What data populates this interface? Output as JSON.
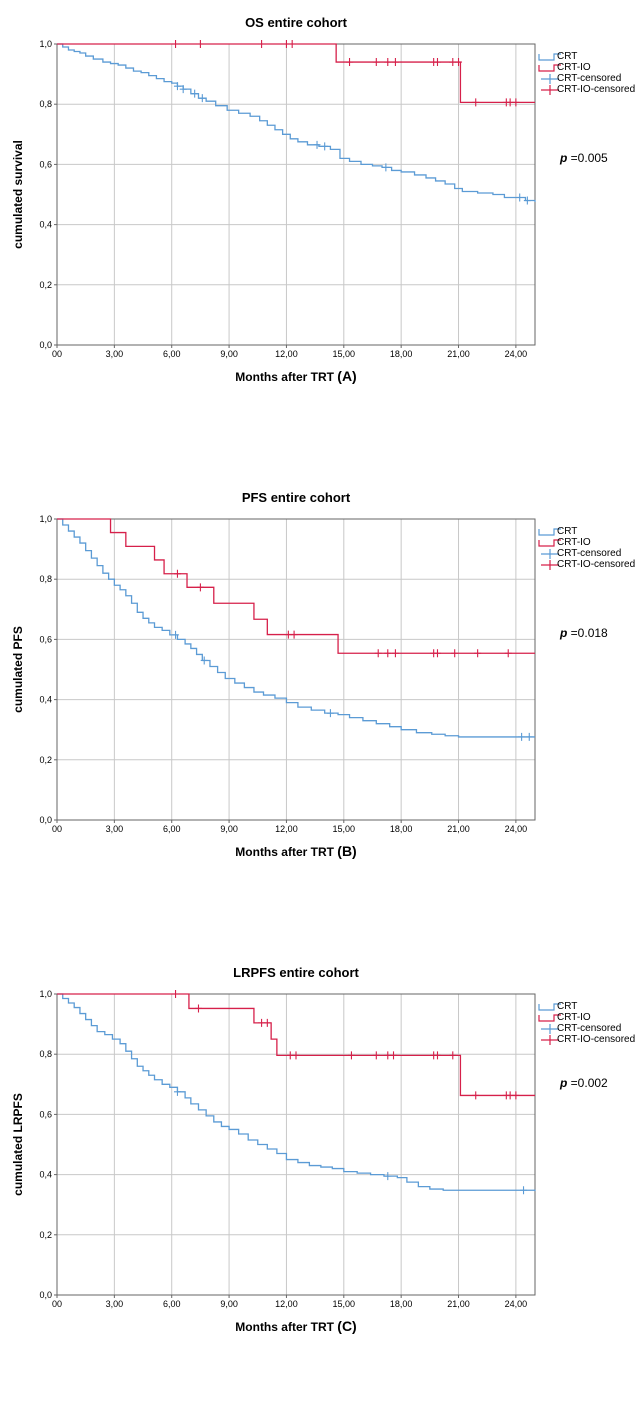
{
  "chart_data": [
    {
      "type": "line",
      "title": "OS entire cohort",
      "xlabel": "Months after TRT",
      "panel_label": "(A)",
      "ylabel": "cumulated survival",
      "p_label": "p",
      "p_value": "=0.005",
      "xlim": [
        0,
        25
      ],
      "ylim": [
        0,
        1
      ],
      "x_ticks": [
        "00",
        "3,00",
        "6,00",
        "9,00",
        "12,00",
        "15,00",
        "18,00",
        "21,00",
        "24,00"
      ],
      "y_ticks": [
        "0,0",
        "0,2",
        "0,4",
        "0,6",
        "0,8",
        "1,0"
      ],
      "legend": [
        "CRT",
        "CRT-IO",
        "CRT-censored",
        "CRT-IO-censored"
      ],
      "colors": {
        "CRT": "#5b9bd5",
        "CRT-IO": "#d6204a"
      },
      "series": [
        {
          "name": "CRT",
          "x": [
            0,
            0.3,
            0.6,
            0.9,
            1.2,
            1.5,
            1.9,
            2.4,
            2.8,
            3.2,
            3.6,
            4.0,
            4.4,
            4.8,
            5.2,
            5.6,
            6.0,
            6.3,
            6.6,
            7.0,
            7.4,
            7.8,
            8.3,
            8.9,
            9.5,
            10.1,
            10.6,
            11.0,
            11.4,
            11.8,
            12.2,
            12.6,
            13.1,
            13.7,
            14.3,
            14.8,
            15.3,
            15.9,
            16.5,
            17.0,
            17.5,
            18.0,
            18.7,
            19.3,
            19.8,
            20.3,
            20.8,
            21.2,
            22.0,
            22.8,
            23.4,
            24.0,
            24.5,
            25.0
          ],
          "y": [
            1.0,
            0.99,
            0.98,
            0.975,
            0.97,
            0.96,
            0.95,
            0.94,
            0.935,
            0.93,
            0.92,
            0.91,
            0.905,
            0.895,
            0.885,
            0.875,
            0.87,
            0.86,
            0.85,
            0.835,
            0.82,
            0.81,
            0.795,
            0.78,
            0.77,
            0.76,
            0.745,
            0.73,
            0.715,
            0.7,
            0.685,
            0.675,
            0.665,
            0.66,
            0.65,
            0.62,
            0.61,
            0.6,
            0.595,
            0.59,
            0.58,
            0.575,
            0.565,
            0.555,
            0.545,
            0.535,
            0.52,
            0.51,
            0.505,
            0.5,
            0.49,
            0.49,
            0.48,
            0.475
          ],
          "censored": [
            6.3,
            6.6,
            7.2,
            7.6,
            13.6,
            14.0,
            17.2,
            24.2,
            24.6
          ]
        },
        {
          "name": "CRT-IO",
          "x": [
            0,
            14.6,
            21.1,
            25.0
          ],
          "y": [
            1.0,
            0.94,
            0.806,
            0.806
          ],
          "censored_x": [
            6.2,
            7.5,
            10.7,
            12.0,
            12.3,
            15.3,
            16.7,
            17.3,
            17.7,
            19.7,
            19.9,
            20.7,
            21.0,
            21.9,
            23.5,
            23.7,
            24.0
          ],
          "censored_y": [
            1.0,
            1.0,
            1.0,
            1.0,
            1.0,
            0.94,
            0.94,
            0.94,
            0.94,
            0.94,
            0.94,
            0.94,
            0.94,
            0.806,
            0.806,
            0.806,
            0.806
          ]
        }
      ]
    },
    {
      "type": "line",
      "title": "PFS entire cohort",
      "xlabel": "Months after TRT",
      "panel_label": "(B)",
      "ylabel": "cumulated PFS",
      "p_label": "p",
      "p_value": "=0.018",
      "xlim": [
        0,
        25
      ],
      "ylim": [
        0,
        1
      ],
      "x_ticks": [
        "00",
        "3,00",
        "6,00",
        "9,00",
        "12,00",
        "15,00",
        "18,00",
        "21,00",
        "24,00"
      ],
      "y_ticks": [
        "0,0",
        "0,2",
        "0,4",
        "0,6",
        "0,8",
        "1,0"
      ],
      "legend": [
        "CRT",
        "CRT-IO",
        "CRT-censored",
        "CRT-IO-censored"
      ],
      "colors": {
        "CRT": "#5b9bd5",
        "CRT-IO": "#d6204a"
      },
      "series": [
        {
          "name": "CRT",
          "x": [
            0,
            0.3,
            0.6,
            0.9,
            1.2,
            1.5,
            1.8,
            2.1,
            2.4,
            2.7,
            3.0,
            3.3,
            3.6,
            3.9,
            4.2,
            4.5,
            4.8,
            5.1,
            5.5,
            5.9,
            6.3,
            6.7,
            7.0,
            7.3,
            7.6,
            8.0,
            8.4,
            8.8,
            9.3,
            9.8,
            10.3,
            10.8,
            11.4,
            12.0,
            12.6,
            13.3,
            14.0,
            14.7,
            15.3,
            16.0,
            16.7,
            17.4,
            18.0,
            18.8,
            19.6,
            20.3,
            21.0,
            24.0,
            25.0
          ],
          "y": [
            1.0,
            0.98,
            0.96,
            0.94,
            0.92,
            0.895,
            0.87,
            0.845,
            0.82,
            0.8,
            0.78,
            0.765,
            0.745,
            0.72,
            0.69,
            0.67,
            0.655,
            0.64,
            0.63,
            0.615,
            0.6,
            0.585,
            0.57,
            0.55,
            0.53,
            0.51,
            0.49,
            0.47,
            0.455,
            0.44,
            0.425,
            0.415,
            0.405,
            0.39,
            0.375,
            0.365,
            0.355,
            0.35,
            0.34,
            0.33,
            0.32,
            0.31,
            0.3,
            0.29,
            0.285,
            0.28,
            0.276,
            0.276,
            0.276
          ],
          "censored": [
            6.2,
            7.7,
            14.3,
            24.3,
            24.7
          ]
        },
        {
          "name": "CRT-IO",
          "x": [
            0,
            2.8,
            3.6,
            5.1,
            5.6,
            6.8,
            8.2,
            10.3,
            11.0,
            14.7,
            25.0
          ],
          "y": [
            1.0,
            0.955,
            0.909,
            0.864,
            0.818,
            0.773,
            0.72,
            0.667,
            0.616,
            0.554,
            0.554
          ],
          "censored_x": [
            6.3,
            7.5,
            12.1,
            12.4,
            16.8,
            17.3,
            17.7,
            19.7,
            19.9,
            20.8,
            22.0,
            23.6
          ],
          "censored_y": [
            0.818,
            0.773,
            0.616,
            0.616,
            0.554,
            0.554,
            0.554,
            0.554,
            0.554,
            0.554,
            0.554,
            0.554
          ]
        }
      ]
    },
    {
      "type": "line",
      "title": "LRPFS entire cohort",
      "xlabel": "Months after TRT",
      "panel_label": "(C)",
      "ylabel": "cumulated LRPFS",
      "p_label": "p",
      "p_value": "=0.002",
      "xlim": [
        0,
        25
      ],
      "ylim": [
        0,
        1
      ],
      "x_ticks": [
        "00",
        "3,00",
        "6,00",
        "9,00",
        "12,00",
        "15,00",
        "18,00",
        "21,00",
        "24,00"
      ],
      "y_ticks": [
        "0,0",
        "0,2",
        "0,4",
        "0,6",
        "0,8",
        "1,0"
      ],
      "legend": [
        "CRT",
        "CRT-IO",
        "CRT-censored",
        "CRT-IO-censored"
      ],
      "colors": {
        "CRT": "#5b9bd5",
        "CRT-IO": "#d6204a"
      },
      "series": [
        {
          "name": "CRT",
          "x": [
            0,
            0.3,
            0.6,
            0.9,
            1.2,
            1.5,
            1.8,
            2.1,
            2.5,
            2.9,
            3.3,
            3.6,
            3.9,
            4.2,
            4.5,
            4.8,
            5.1,
            5.5,
            5.9,
            6.3,
            6.7,
            7.0,
            7.4,
            7.8,
            8.2,
            8.6,
            9.0,
            9.5,
            10.0,
            10.5,
            11.0,
            11.5,
            12.0,
            12.6,
            13.2,
            13.8,
            14.4,
            15.0,
            15.7,
            16.4,
            17.1,
            17.8,
            18.3,
            18.9,
            19.5,
            20.2,
            21.0,
            24.0,
            25.0
          ],
          "y": [
            1.0,
            0.985,
            0.97,
            0.955,
            0.935,
            0.915,
            0.895,
            0.875,
            0.865,
            0.85,
            0.835,
            0.81,
            0.785,
            0.76,
            0.745,
            0.73,
            0.715,
            0.7,
            0.69,
            0.675,
            0.655,
            0.635,
            0.615,
            0.595,
            0.575,
            0.56,
            0.55,
            0.535,
            0.515,
            0.5,
            0.485,
            0.47,
            0.45,
            0.44,
            0.43,
            0.425,
            0.42,
            0.41,
            0.405,
            0.4,
            0.395,
            0.39,
            0.375,
            0.36,
            0.352,
            0.348,
            0.348,
            0.348,
            0.345
          ],
          "censored": [
            6.3,
            17.3,
            24.4
          ]
        },
        {
          "name": "CRT-IO",
          "x": [
            0,
            6.9,
            10.3,
            11.2,
            11.5,
            21.1,
            25.0
          ],
          "y": [
            1.0,
            0.952,
            0.904,
            0.85,
            0.796,
            0.663,
            0.663
          ],
          "censored_x": [
            6.2,
            7.4,
            10.7,
            11.0,
            12.2,
            12.5,
            15.4,
            16.7,
            17.3,
            17.6,
            19.7,
            19.9,
            20.7,
            21.9,
            23.5,
            23.7,
            24.0
          ],
          "censored_y": [
            1.0,
            0.952,
            0.904,
            0.904,
            0.796,
            0.796,
            0.796,
            0.796,
            0.796,
            0.796,
            0.796,
            0.796,
            0.796,
            0.663,
            0.663,
            0.663,
            0.663
          ]
        }
      ]
    }
  ]
}
